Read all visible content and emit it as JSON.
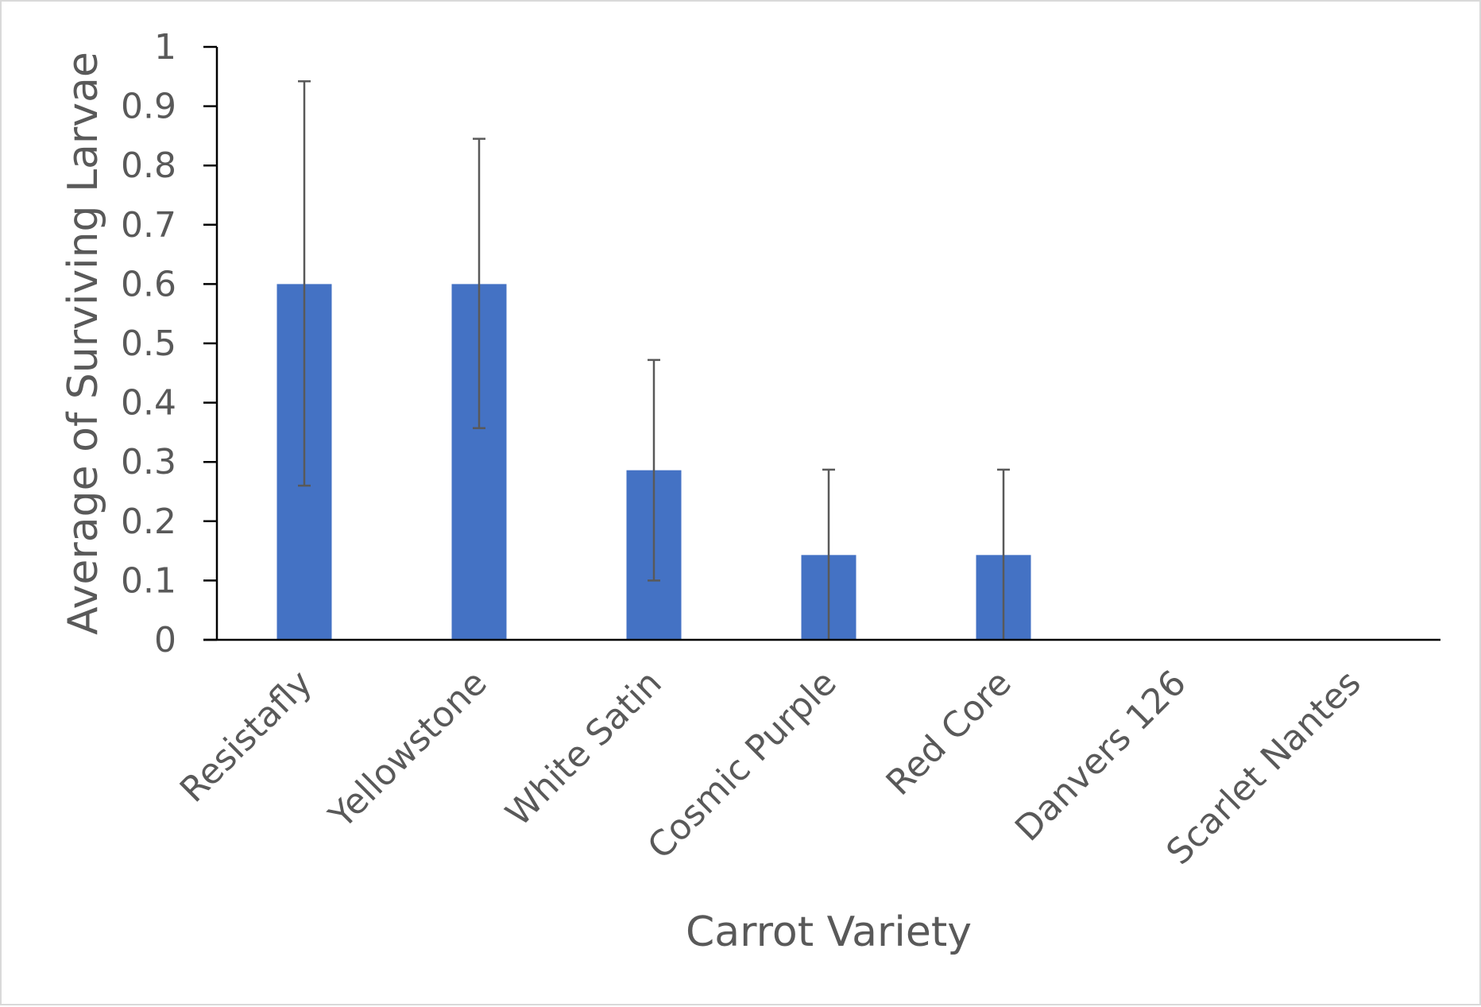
{
  "chart_data": {
    "type": "bar",
    "title": "",
    "xlabel": "Carrot Variety",
    "ylabel": "Average of Surviving Larvae",
    "categories": [
      "Resistafly",
      "Yellowstone",
      "White Satin",
      "Cosmic Purple",
      "Red Core",
      "Danvers 126",
      "Scarlet Nantes"
    ],
    "values": [
      0.6,
      0.6,
      0.286,
      0.143,
      0.143,
      0,
      0
    ],
    "error_upper": [
      0.942,
      0.845,
      0.472,
      0.287,
      0.287,
      0,
      0
    ],
    "error_lower": [
      0.26,
      0.357,
      0.1,
      0,
      0,
      0,
      0
    ],
    "ylim": [
      0,
      1
    ],
    "yticks": [
      0,
      0.1,
      0.2,
      0.3,
      0.4,
      0.5,
      0.6,
      0.7,
      0.8,
      0.9,
      1
    ],
    "ytick_labels": [
      "0",
      "0.1",
      "0.2",
      "0.3",
      "0.4",
      "0.5",
      "0.6",
      "0.7",
      "0.8",
      "0.9",
      "1"
    ],
    "grid": false,
    "legend": "none",
    "colors": {
      "bar": "#4472c4",
      "axis": "#000000",
      "error_bar": "#595959",
      "text": "#595959",
      "border": "#d9d9d9"
    }
  }
}
